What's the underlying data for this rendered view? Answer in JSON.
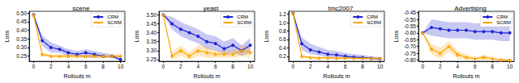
{
  "chart_data": [
    {
      "type": "line",
      "title": "scene",
      "x_label": "Rollouts m",
      "y_label": "Loss",
      "x": [
        0,
        1,
        2,
        3,
        4,
        5,
        6,
        7,
        8,
        9,
        10
      ],
      "xlim": [
        -0.5,
        10.5
      ],
      "xticks": [
        0,
        2,
        4,
        6,
        8,
        10
      ],
      "ylim": [
        0.22,
        0.51
      ],
      "yticks": [
        0.25,
        {
          "value": 0.3,
          "label": "0.30"
        },
        0.35,
        {
          "value": 0.4,
          "label": "0.40"
        },
        0.45,
        {
          "value": 0.5,
          "label": "0.50"
        }
      ],
      "legend": "upper right",
      "series": [
        {
          "name": "CRM",
          "color": "#1f24d4",
          "marker": "circle",
          "values": [
            0.49,
            0.34,
            0.3,
            0.29,
            0.27,
            0.26,
            0.27,
            0.26,
            0.25,
            0.25,
            0.23
          ],
          "lower": [
            0.49,
            0.31,
            0.27,
            0.27,
            0.25,
            0.25,
            0.24,
            0.24,
            0.24,
            0.24,
            0.22
          ],
          "upper": [
            0.49,
            0.37,
            0.33,
            0.31,
            0.29,
            0.28,
            0.29,
            0.28,
            0.27,
            0.26,
            0.25
          ]
        },
        {
          "name": "SCRM",
          "color": "#ffa500",
          "marker": "star",
          "values": [
            0.49,
            0.26,
            0.25,
            0.25,
            0.25,
            0.25,
            0.25,
            0.25,
            0.25,
            0.25,
            0.25
          ],
          "lower": [
            0.49,
            0.25,
            0.24,
            0.24,
            0.24,
            0.24,
            0.24,
            0.24,
            0.24,
            0.24,
            0.24
          ],
          "upper": [
            0.49,
            0.27,
            0.26,
            0.26,
            0.26,
            0.26,
            0.26,
            0.26,
            0.26,
            0.26,
            0.26
          ]
        }
      ]
    },
    {
      "type": "line",
      "title": "yeast",
      "x_label": "Rollouts m",
      "y_label": "Loss",
      "x": [
        0,
        1,
        2,
        3,
        4,
        5,
        6,
        7,
        8,
        9,
        10
      ],
      "xlim": [
        -0.5,
        10.5
      ],
      "xticks": [
        0,
        2,
        4,
        6,
        8,
        10
      ],
      "ylim": [
        3.24,
        3.52
      ],
      "yticks": [
        3.25,
        {
          "value": 3.3,
          "label": "3.30"
        },
        3.35,
        {
          "value": 3.4,
          "label": "3.40"
        },
        3.45,
        {
          "value": 3.5,
          "label": "3.50"
        }
      ],
      "legend": "upper right",
      "series": [
        {
          "name": "CRM",
          "color": "#1f24d4",
          "marker": "circle",
          "values": [
            3.5,
            3.45,
            3.42,
            3.4,
            3.38,
            3.35,
            3.34,
            3.31,
            3.33,
            3.3,
            3.33
          ],
          "lower": [
            3.5,
            3.42,
            3.38,
            3.36,
            3.34,
            3.31,
            3.3,
            3.28,
            3.29,
            3.27,
            3.29
          ],
          "upper": [
            3.5,
            3.49,
            3.46,
            3.44,
            3.42,
            3.39,
            3.38,
            3.35,
            3.37,
            3.33,
            3.37
          ]
        },
        {
          "name": "SCRM",
          "color": "#ffa500",
          "marker": "star",
          "values": [
            3.5,
            3.27,
            3.3,
            3.27,
            3.3,
            3.29,
            3.28,
            3.28,
            3.28,
            3.3,
            3.29
          ],
          "lower": [
            3.5,
            3.25,
            3.27,
            3.25,
            3.27,
            3.26,
            3.26,
            3.26,
            3.26,
            3.27,
            3.26
          ],
          "upper": [
            3.5,
            3.29,
            3.33,
            3.29,
            3.33,
            3.32,
            3.3,
            3.3,
            3.3,
            3.33,
            3.32
          ]
        }
      ]
    },
    {
      "type": "line",
      "title": "tmc2007",
      "x_label": "Rollouts m",
      "y_label": "Loss",
      "x": [
        0,
        1,
        2,
        3,
        4,
        5,
        6,
        7,
        8,
        9,
        10
      ],
      "xlim": [
        -0.5,
        10.5
      ],
      "xticks": [
        0,
        2,
        4,
        6,
        8,
        10
      ],
      "ylim": [
        0.08,
        1.27
      ],
      "yticks": [
        0.2,
        0.4,
        0.6,
        0.8,
        {
          "value": 1,
          "label": "1.0"
        },
        1.2
      ],
      "legend": "upper right",
      "series": [
        {
          "name": "CRM",
          "color": "#1f24d4",
          "marker": "circle",
          "values": [
            1.22,
            0.5,
            0.35,
            0.3,
            0.25,
            0.23,
            0.2,
            0.18,
            0.17,
            0.15,
            0.14
          ],
          "lower": [
            1.22,
            0.35,
            0.25,
            0.22,
            0.18,
            0.17,
            0.15,
            0.14,
            0.13,
            0.12,
            0.11
          ],
          "upper": [
            1.22,
            0.65,
            0.5,
            0.42,
            0.35,
            0.32,
            0.28,
            0.25,
            0.23,
            0.2,
            0.18
          ]
        },
        {
          "name": "SCRM",
          "color": "#ffa500",
          "marker": "star",
          "values": [
            1.22,
            0.2,
            0.17,
            0.16,
            0.16,
            0.15,
            0.16,
            0.15,
            0.15,
            0.15,
            0.15
          ],
          "lower": [
            1.22,
            0.17,
            0.15,
            0.14,
            0.14,
            0.13,
            0.14,
            0.13,
            0.13,
            0.13,
            0.13
          ],
          "upper": [
            1.22,
            0.24,
            0.2,
            0.19,
            0.19,
            0.18,
            0.19,
            0.18,
            0.18,
            0.18,
            0.18
          ]
        }
      ]
    },
    {
      "type": "line",
      "title": "Advertising",
      "x_label": "Rollouts m",
      "y_label": "Loss",
      "x": [
        0,
        1,
        2,
        3,
        4,
        5,
        6,
        7,
        8,
        9,
        10
      ],
      "xlim": [
        -0.5,
        10.5
      ],
      "xticks": [
        0,
        2,
        4,
        6,
        8,
        10
      ],
      "ylim": [
        -0.81,
        -0.44
      ],
      "yticks": [
        {
          "value": -0.8,
          "label": "-0.80"
        },
        -0.75,
        {
          "value": -0.7,
          "label": "-0.70"
        },
        -0.65,
        {
          "value": -0.6,
          "label": "-0.60"
        },
        -0.55,
        {
          "value": -0.5,
          "label": "-0.50"
        },
        -0.45
      ],
      "legend": "upper right",
      "series": [
        {
          "name": "CRM",
          "color": "#1f24d4",
          "marker": "circle",
          "values": [
            -0.6,
            -0.56,
            -0.57,
            -0.58,
            -0.58,
            -0.58,
            -0.59,
            -0.59,
            -0.59,
            -0.6,
            -0.6
          ],
          "lower": [
            -0.6,
            -0.62,
            -0.63,
            -0.64,
            -0.64,
            -0.64,
            -0.65,
            -0.65,
            -0.65,
            -0.66,
            -0.66
          ],
          "upper": [
            -0.6,
            -0.5,
            -0.51,
            -0.52,
            -0.52,
            -0.52,
            -0.53,
            -0.53,
            -0.53,
            -0.54,
            -0.54
          ]
        },
        {
          "name": "SCRM",
          "color": "#ffa500",
          "marker": "star",
          "values": [
            -0.6,
            -0.72,
            -0.75,
            -0.7,
            -0.76,
            -0.78,
            -0.79,
            -0.78,
            -0.79,
            -0.8,
            -0.8
          ],
          "lower": [
            -0.6,
            -0.76,
            -0.79,
            -0.74,
            -0.79,
            -0.8,
            -0.8,
            -0.8,
            -0.8,
            -0.8,
            -0.8
          ],
          "upper": [
            -0.6,
            -0.68,
            -0.71,
            -0.66,
            -0.73,
            -0.76,
            -0.78,
            -0.76,
            -0.78,
            -0.79,
            -0.79
          ]
        }
      ]
    }
  ]
}
